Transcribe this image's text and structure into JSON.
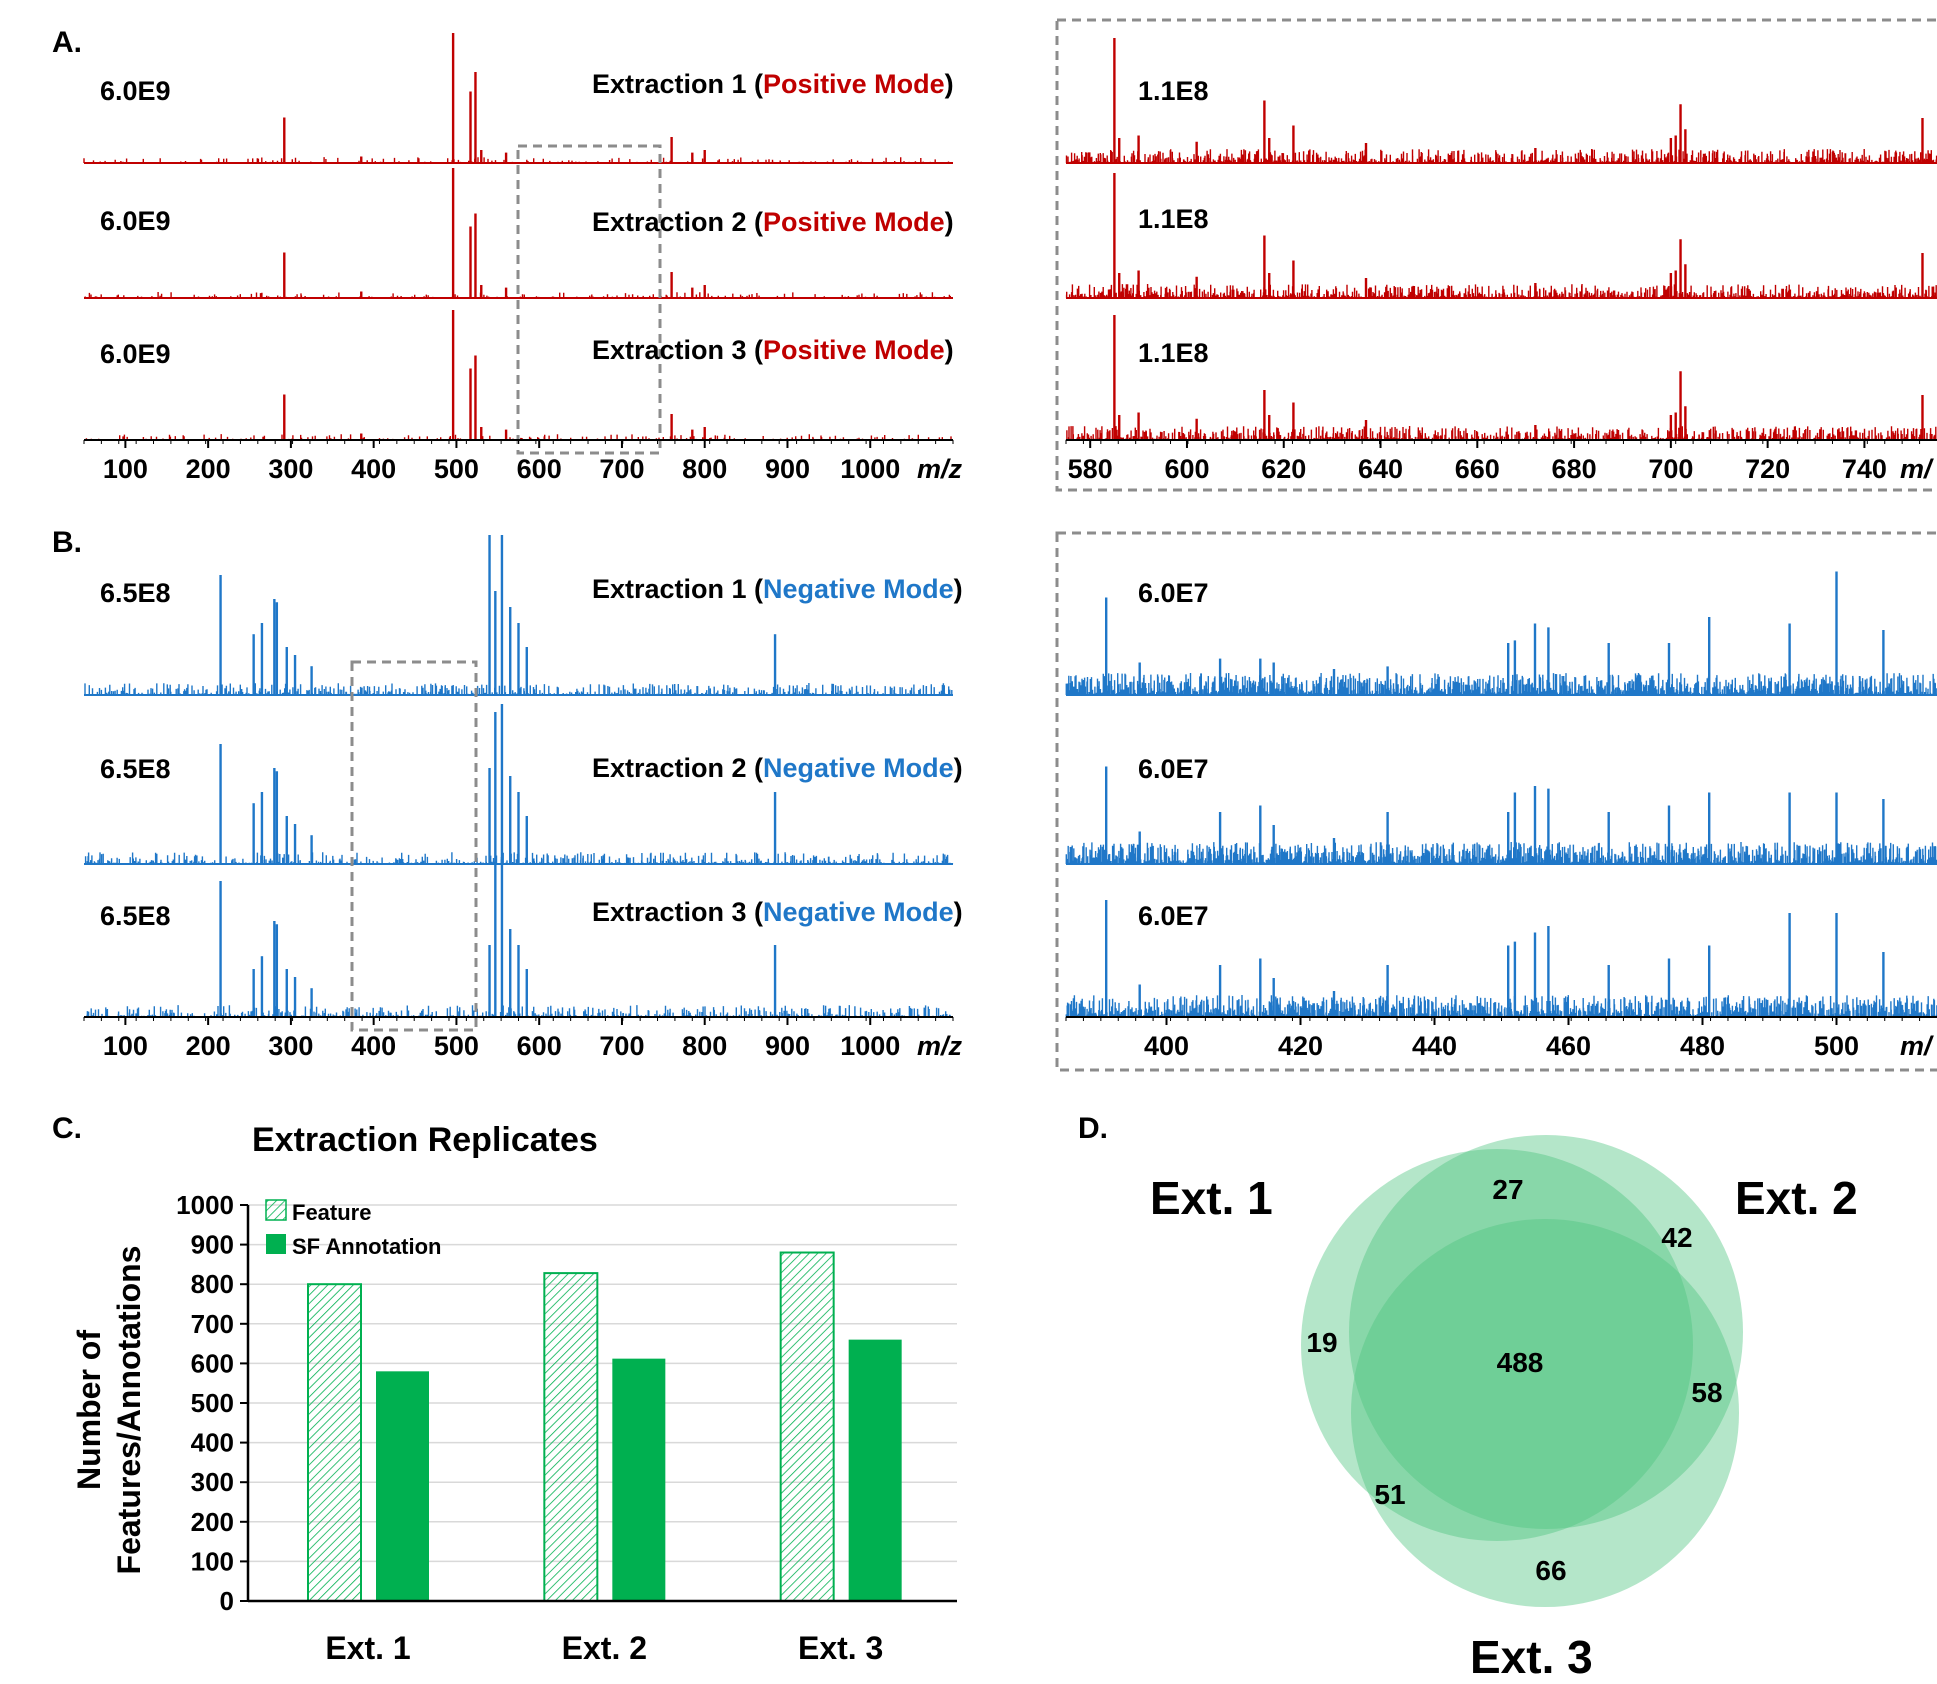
{
  "panels": {
    "a": {
      "label": "A.",
      "mode_word": "Positive Mode",
      "color": "#c00000",
      "main_ticks": [
        "100",
        "200",
        "300",
        "400",
        "500",
        "600",
        "700",
        "800",
        "900",
        "1000"
      ],
      "zoom_ticks": [
        "580",
        "600",
        "620",
        "640",
        "660",
        "680",
        "700",
        "720",
        "740"
      ],
      "axis_unit": "m/z",
      "zoom_axis_unit": "m/",
      "rows": [
        {
          "prefix": "Extraction 1 (",
          "scale": "6.0E9",
          "zoom_scale": "1.1E8"
        },
        {
          "prefix": "Extraction 2 (",
          "scale": "6.0E9",
          "zoom_scale": "1.1E8"
        },
        {
          "prefix": "Extraction 3 (",
          "scale": "6.0E9",
          "zoom_scale": "1.1E8"
        }
      ]
    },
    "b": {
      "label": "B.",
      "mode_word": "Negative Mode",
      "color": "#1f77c8",
      "main_ticks": [
        "100",
        "200",
        "300",
        "400",
        "500",
        "600",
        "700",
        "800",
        "900",
        "1000"
      ],
      "zoom_ticks": [
        "400",
        "420",
        "440",
        "460",
        "480",
        "500"
      ],
      "axis_unit": "m/z",
      "zoom_axis_unit": "m/",
      "rows": [
        {
          "prefix": "Extraction 1 (",
          "scale": "6.5E8",
          "zoom_scale": "6.0E7"
        },
        {
          "prefix": "Extraction 2 (",
          "scale": "6.5E8",
          "zoom_scale": "6.0E7"
        },
        {
          "prefix": "Extraction 3 (",
          "scale": "6.5E8",
          "zoom_scale": "6.0E7"
        }
      ]
    },
    "c": {
      "label": "C."
    },
    "d": {
      "label": "D."
    }
  },
  "chart_data": [
    {
      "type": "line",
      "panel": "A",
      "title": "Extraction 1/2/3 (Positive Mode)",
      "xlabel": "m/z",
      "xlim": [
        50,
        1100
      ],
      "series": [
        {
          "name": "Extraction 1 (Positive Mode)",
          "intensity_scale": "6.0E9",
          "x": [
            292,
            385,
            496,
            517,
            523,
            530,
            560,
            760,
            785,
            800
          ],
          "y": [
            0.35,
            0.05,
            1.0,
            0.55,
            0.7,
            0.1,
            0.08,
            0.2,
            0.08,
            0.1
          ]
        },
        {
          "name": "Extraction 2 (Positive Mode)",
          "intensity_scale": "6.0E9",
          "x": [
            292,
            385,
            496,
            517,
            523,
            530,
            560,
            760,
            785,
            800
          ],
          "y": [
            0.35,
            0.05,
            1.0,
            0.55,
            0.65,
            0.1,
            0.08,
            0.2,
            0.08,
            0.1
          ]
        },
        {
          "name": "Extraction 3 (Positive Mode)",
          "intensity_scale": "6.0E9",
          "x": [
            292,
            385,
            496,
            517,
            523,
            530,
            560,
            760,
            785,
            800
          ],
          "y": [
            0.35,
            0.05,
            1.0,
            0.55,
            0.65,
            0.1,
            0.08,
            0.2,
            0.08,
            0.1
          ]
        }
      ]
    },
    {
      "type": "line",
      "panel": "A-zoom",
      "xlabel": "m/",
      "xlim": [
        575,
        755
      ],
      "series": [
        {
          "name": "Extraction 1 zoom",
          "intensity_scale": "1.1E8",
          "x": [
            585,
            586,
            590,
            602,
            616,
            617,
            622,
            637,
            672,
            700,
            701,
            702,
            703,
            752
          ],
          "y": [
            1.0,
            0.2,
            0.22,
            0.17,
            0.5,
            0.2,
            0.3,
            0.16,
            0.12,
            0.2,
            0.22,
            0.47,
            0.27,
            0.36
          ]
        },
        {
          "name": "Extraction 2 zoom",
          "intensity_scale": "1.1E8",
          "x": [
            585,
            586,
            590,
            602,
            616,
            617,
            622,
            637,
            672,
            700,
            701,
            702,
            703,
            752
          ],
          "y": [
            1.0,
            0.2,
            0.22,
            0.17,
            0.5,
            0.2,
            0.3,
            0.16,
            0.12,
            0.2,
            0.22,
            0.47,
            0.27,
            0.36
          ]
        },
        {
          "name": "Extraction 3 zoom",
          "intensity_scale": "1.1E8",
          "x": [
            585,
            586,
            590,
            602,
            616,
            617,
            622,
            637,
            672,
            700,
            701,
            702,
            703,
            752
          ],
          "y": [
            1.0,
            0.2,
            0.22,
            0.17,
            0.4,
            0.2,
            0.3,
            0.16,
            0.12,
            0.2,
            0.22,
            0.55,
            0.27,
            0.36
          ]
        }
      ]
    },
    {
      "type": "line",
      "panel": "B",
      "title": "Extraction 1/2/3 (Negative Mode)",
      "xlabel": "m/z",
      "xlim": [
        50,
        1100
      ],
      "series": [
        {
          "name": "Extraction 1 (Negative Mode)",
          "intensity_scale": "6.5E8",
          "x": [
            215,
            255,
            265,
            280,
            283,
            295,
            305,
            325,
            540,
            547,
            555,
            565,
            575,
            585,
            885
          ],
          "y": [
            0.75,
            0.38,
            0.45,
            0.6,
            0.58,
            0.3,
            0.25,
            0.18,
            1.0,
            0.65,
            1.0,
            0.55,
            0.45,
            0.3,
            0.38
          ]
        },
        {
          "name": "Extraction 2 (Negative Mode)",
          "intensity_scale": "6.5E8",
          "x": [
            215,
            255,
            265,
            280,
            283,
            295,
            305,
            325,
            540,
            547,
            555,
            565,
            575,
            585,
            885
          ],
          "y": [
            0.75,
            0.38,
            0.45,
            0.6,
            0.58,
            0.3,
            0.25,
            0.18,
            0.6,
            0.95,
            1.0,
            0.55,
            0.45,
            0.3,
            0.45
          ]
        },
        {
          "name": "Extraction 3 (Negative Mode)",
          "intensity_scale": "6.5E8",
          "x": [
            215,
            255,
            265,
            280,
            283,
            295,
            305,
            325,
            540,
            547,
            555,
            565,
            575,
            585,
            885
          ],
          "y": [
            0.85,
            0.3,
            0.38,
            0.6,
            0.58,
            0.3,
            0.25,
            0.18,
            0.45,
            0.95,
            1.0,
            0.55,
            0.45,
            0.3,
            0.45
          ]
        }
      ]
    },
    {
      "type": "line",
      "panel": "B-zoom",
      "xlabel": "m/",
      "xlim": [
        385,
        515
      ],
      "series": [
        {
          "name": "Extraction 1 zoom",
          "intensity_scale": "6.0E7",
          "x": [
            391,
            396,
            408,
            414,
            416,
            425,
            433,
            451,
            452,
            455,
            457,
            466,
            475,
            481,
            493,
            500,
            507
          ],
          "y": [
            0.75,
            0.25,
            0.28,
            0.28,
            0.25,
            0.2,
            0.22,
            0.4,
            0.42,
            0.55,
            0.52,
            0.4,
            0.4,
            0.6,
            0.55,
            0.95,
            0.5
          ]
        },
        {
          "name": "Extraction 2 zoom",
          "intensity_scale": "6.0E7",
          "x": [
            391,
            396,
            408,
            414,
            416,
            425,
            433,
            451,
            452,
            455,
            457,
            466,
            475,
            481,
            493,
            500,
            507
          ],
          "y": [
            0.75,
            0.25,
            0.4,
            0.45,
            0.3,
            0.2,
            0.4,
            0.4,
            0.55,
            0.6,
            0.58,
            0.4,
            0.45,
            0.55,
            0.55,
            0.55,
            0.5
          ]
        },
        {
          "name": "Extraction 3 zoom",
          "intensity_scale": "6.0E7",
          "x": [
            391,
            396,
            408,
            414,
            416,
            425,
            433,
            451,
            452,
            455,
            457,
            466,
            475,
            481,
            493,
            500,
            507
          ],
          "y": [
            0.9,
            0.25,
            0.4,
            0.45,
            0.3,
            0.2,
            0.4,
            0.55,
            0.58,
            0.65,
            0.7,
            0.4,
            0.45,
            0.55,
            0.8,
            0.8,
            0.5
          ]
        }
      ]
    },
    {
      "type": "bar",
      "panel": "C",
      "title": "Extraction Replicates",
      "ylabel": "Number of Features/Annotations",
      "categories": [
        "Ext. 1",
        "Ext. 2",
        "Ext. 3"
      ],
      "ylim": [
        0,
        1000
      ],
      "yticks": [
        "0",
        "100",
        "200",
        "300",
        "400",
        "500",
        "600",
        "700",
        "800",
        "900",
        "1000"
      ],
      "grid": true,
      "legend_position": "top-left",
      "series": [
        {
          "name": "Feature",
          "values": [
            800,
            828,
            880
          ],
          "color": "#00b050",
          "pattern": "hatched"
        },
        {
          "name": "SF Annotation",
          "values": [
            580,
            612,
            660
          ],
          "color": "#00b050",
          "pattern": "solid"
        }
      ]
    },
    {
      "type": "venn",
      "panel": "D",
      "sets": [
        "Ext. 1",
        "Ext. 2",
        "Ext. 3"
      ],
      "regions": {
        "only_ext1": "19",
        "ext1_ext2": "27",
        "only_ext2": "42",
        "ext2_ext3": "58",
        "only_ext3": "66",
        "ext1_ext3": "51",
        "all_three": "488"
      },
      "color": "#4cc47e"
    }
  ]
}
